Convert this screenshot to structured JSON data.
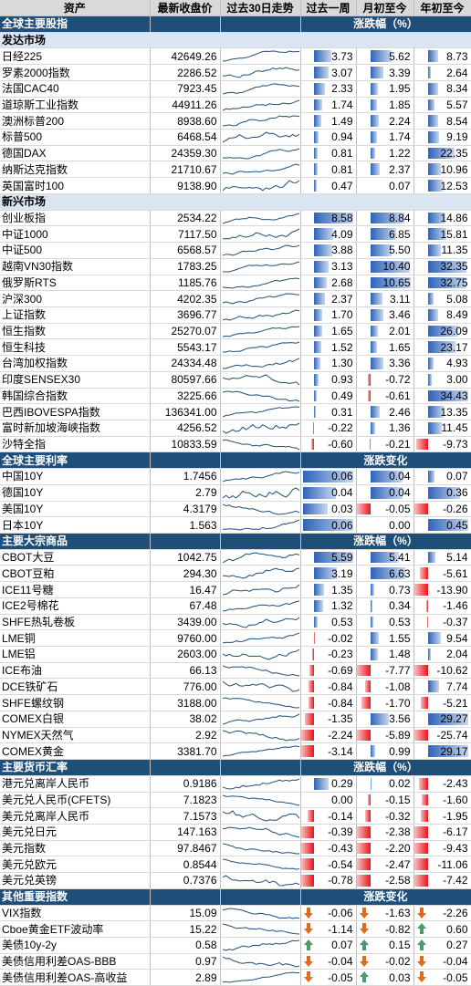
{
  "header": [
    "资产",
    "最新收盘价",
    "过去30日走势",
    "过去一周",
    "月初至今",
    "年初至今"
  ],
  "sections": [
    {
      "title": "全球主要股指",
      "change_label": "涨跌幅（%）",
      "mode": "bar",
      "groups": [
        {
          "title": "发达市场",
          "rows": [
            [
              "日经225",
              "42649.26",
              "3.73",
              "5.62",
              "8.73"
            ],
            [
              "罗素2000指数",
              "2286.52",
              "3.07",
              "3.39",
              "2.64"
            ],
            [
              "法国CAC40",
              "7923.45",
              "2.33",
              "1.95",
              "8.34"
            ],
            [
              "道琼斯工业指数",
              "44911.26",
              "1.74",
              "1.85",
              "5.57"
            ],
            [
              "澳洲标普200",
              "8938.60",
              "1.49",
              "2.24",
              "8.54"
            ],
            [
              "标普500",
              "6468.54",
              "0.94",
              "1.74",
              "9.19"
            ],
            [
              "德国DAX",
              "24359.30",
              "0.81",
              "1.22",
              "22.35"
            ],
            [
              "纳斯达克指数",
              "21710.67",
              "0.81",
              "2.37",
              "10.96"
            ],
            [
              "英国富时100",
              "9138.90",
              "0.47",
              "0.07",
              "12.53"
            ]
          ]
        },
        {
          "title": "新兴市场",
          "rows": [
            [
              "创业板指",
              "2534.22",
              "8.58",
              "8.84",
              "14.86"
            ],
            [
              "中证1000",
              "7117.50",
              "4.09",
              "6.85",
              "15.81"
            ],
            [
              "中证500",
              "6568.57",
              "3.88",
              "5.50",
              "11.35"
            ],
            [
              "越南VN30指数",
              "1783.25",
              "3.13",
              "10.40",
              "32.35"
            ],
            [
              "俄罗斯RTS",
              "1185.76",
              "2.68",
              "10.65",
              "32.75"
            ],
            [
              "沪深300",
              "4202.35",
              "2.37",
              "3.11",
              "5.08"
            ],
            [
              "上证指数",
              "3696.77",
              "1.70",
              "3.46",
              "8.49"
            ],
            [
              "恒生指数",
              "25270.07",
              "1.65",
              "2.01",
              "26.09"
            ],
            [
              "恒生科技",
              "5543.17",
              "1.52",
              "1.65",
              "23.17"
            ],
            [
              "台湾加权指数",
              "24334.48",
              "1.30",
              "3.36",
              "4.93"
            ],
            [
              "印度SENSEX30",
              "80597.66",
              "0.93",
              "-0.72",
              "3.00"
            ],
            [
              "韩国综合指数",
              "3225.66",
              "0.49",
              "-0.61",
              "34.43"
            ],
            [
              "巴西IBOVESPA指数",
              "136341.00",
              "0.31",
              "2.46",
              "13.35"
            ],
            [
              "富时新加坡海峡指数",
              "4256.52",
              "-0.22",
              "1.36",
              "11.45"
            ],
            [
              "沙特全指",
              "10833.59",
              "-0.60",
              "-0.21",
              "-9.73"
            ]
          ]
        }
      ]
    },
    {
      "title": "全球主要利率",
      "change_label": "涨跌变化",
      "mode": "bar",
      "groups": [
        {
          "title": "",
          "rows": [
            [
              "中国10Y",
              "1.7456",
              "0.06",
              "0.04",
              "0.07"
            ],
            [
              "德国10Y",
              "2.79",
              "0.04",
              "0.04",
              "0.36"
            ],
            [
              "美国10Y",
              "4.3179",
              "0.03",
              "-0.05",
              "-0.26"
            ],
            [
              "日本10Y",
              "1.563",
              "0.06",
              "0.00",
              "0.45"
            ]
          ]
        }
      ]
    },
    {
      "title": "主要大宗商品",
      "change_label": "涨跌幅（%）",
      "mode": "bar",
      "groups": [
        {
          "title": "",
          "rows": [
            [
              "CBOT大豆",
              "1042.75",
              "5.59",
              "5.41",
              "5.14"
            ],
            [
              "CBOT豆粕",
              "294.30",
              "3.19",
              "6.63",
              "-5.61"
            ],
            [
              "ICE11号糖",
              "16.47",
              "1.35",
              "0.73",
              "-13.90"
            ],
            [
              "ICE2号棉花",
              "67.48",
              "1.32",
              "0.34",
              "-1.46"
            ],
            [
              "SHFE热轧卷板",
              "3439.00",
              "0.53",
              "0.53",
              "-0.37"
            ],
            [
              "LME铜",
              "9760.00",
              "-0.02",
              "1.55",
              "9.54"
            ],
            [
              "LME铝",
              "2603.00",
              "-0.23",
              "1.48",
              "2.04"
            ],
            [
              "ICE布油",
              "66.13",
              "-0.69",
              "-7.77",
              "-10.62"
            ],
            [
              "DCE铁矿石",
              "776.00",
              "-0.84",
              "-1.08",
              "7.74"
            ],
            [
              "SHFE螺纹钢",
              "3188.00",
              "-0.84",
              "-1.70",
              "-5.21"
            ],
            [
              "COMEX白银",
              "38.02",
              "-1.35",
              "3.56",
              "29.27"
            ],
            [
              "NYMEX天然气",
              "2.92",
              "-2.24",
              "-5.89",
              "-25.74"
            ],
            [
              "COMEX黄金",
              "3381.70",
              "-3.14",
              "0.99",
              "29.17"
            ]
          ]
        }
      ]
    },
    {
      "title": "主要货币汇率",
      "change_label": "涨跌幅（%）",
      "mode": "bar",
      "groups": [
        {
          "title": "",
          "rows": [
            [
              "港元兑离岸人民币",
              "0.9186",
              "0.29",
              "0.02",
              "-2.43"
            ],
            [
              "美元兑人民币(CFETS)",
              "7.1823",
              "0.00",
              "-0.15",
              "-1.60"
            ],
            [
              "美元兑离岸人民币",
              "7.1573",
              "-0.14",
              "-0.32",
              "-1.95"
            ],
            [
              "美元兑日元",
              "147.163",
              "-0.39",
              "-2.38",
              "-6.17"
            ],
            [
              "美元指数",
              "97.8467",
              "-0.43",
              "-2.20",
              "-9.43"
            ],
            [
              "美元兑欧元",
              "0.8544",
              "-0.54",
              "-2.47",
              "-11.06"
            ],
            [
              "美元兑英镑",
              "0.7376",
              "-0.78",
              "-2.58",
              "-7.42"
            ]
          ]
        }
      ]
    },
    {
      "title": "其他重要指数",
      "change_label": "涨跌变化",
      "mode": "arrow",
      "groups": [
        {
          "title": "",
          "rows": [
            [
              "VIX指数",
              "15.09",
              "-0.06",
              "-1.63",
              "-2.26"
            ],
            [
              "Cboe黄金ETF波动率",
              "15.22",
              "-1.14",
              "-0.82",
              "0.60"
            ],
            [
              "美债10y-2y",
              "0.58",
              "0.07",
              "0.15",
              "0.27"
            ],
            [
              "美债信用利差OAS-BBB",
              "0.97",
              "-0.04",
              "-0.02",
              "-0.04"
            ],
            [
              "美债信用利差OAS-高收益",
              "2.89",
              "-0.05",
              "0.03",
              "-0.05"
            ]
          ]
        }
      ]
    }
  ],
  "colors": {
    "section_bg": "#1f4e79",
    "positive_bar": "#2e64b8",
    "negative_bar": "#e8141b",
    "spark": "#1f4e79",
    "arrow_up": "#4a9a6a",
    "arrow_down": "#e06a1e"
  }
}
